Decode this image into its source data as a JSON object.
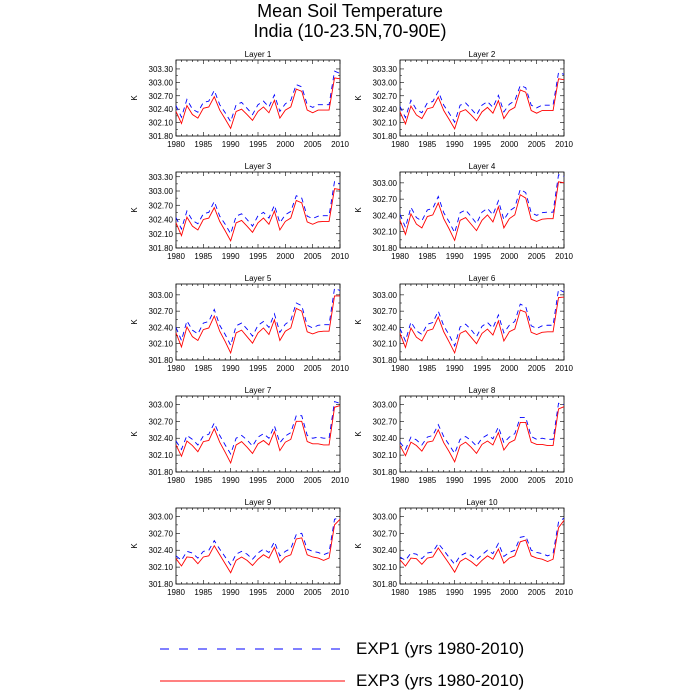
{
  "title": {
    "line1": "Mean Soil Temperature",
    "line2": "India (10-23.5N,70-90E)"
  },
  "colors": {
    "exp1": "#0000ff",
    "exp3": "#ff0000",
    "axis": "#000000"
  },
  "chart_data": {
    "type": "line",
    "x": [
      1980,
      1981,
      1982,
      1983,
      1984,
      1985,
      1986,
      1987,
      1988,
      1989,
      1990,
      1991,
      1992,
      1993,
      1994,
      1995,
      1996,
      1997,
      1998,
      1999,
      2000,
      2001,
      2002,
      2003,
      2004,
      2005,
      2006,
      2007,
      2008,
      2009,
      2010
    ],
    "xlim": [
      1980,
      2010
    ],
    "xticks": [
      1980,
      1985,
      1990,
      1995,
      2000,
      2005,
      2010
    ],
    "ylabel": "K",
    "legend": {
      "position": "bottom",
      "entries": [
        {
          "name": "EXP1 (yrs 1980-2010)",
          "style": "dashed",
          "color": "#0000ff"
        },
        {
          "name": "EXP3 (yrs 1980-2010)",
          "style": "solid",
          "color": "#ff0000"
        }
      ]
    },
    "panels": [
      {
        "title": "Layer 1",
        "ylim": [
          301.8,
          303.5
        ],
        "yticks": [
          "301.80",
          "302.10",
          "302.40",
          "302.70",
          "303.00",
          "303.30"
        ],
        "series": [
          {
            "name": "EXP1 (yrs 1980-2010)",
            "values": [
              302.48,
              302.22,
              302.62,
              302.4,
              302.33,
              302.55,
              302.58,
              302.82,
              302.5,
              302.32,
              302.12,
              302.5,
              302.55,
              302.42,
              302.28,
              302.5,
              302.58,
              302.45,
              302.72,
              302.35,
              302.52,
              302.6,
              302.95,
              302.9,
              302.5,
              302.44,
              302.5,
              302.5,
              302.5,
              303.25,
              303.2
            ]
          },
          {
            "name": "EXP3 (yrs 1980-2010)",
            "values": [
              302.35,
              302.08,
              302.48,
              302.28,
              302.2,
              302.42,
              302.45,
              302.68,
              302.38,
              302.18,
              301.97,
              302.35,
              302.4,
              302.28,
              302.15,
              302.35,
              302.45,
              302.32,
              302.6,
              302.2,
              302.38,
              302.45,
              302.85,
              302.8,
              302.38,
              302.32,
              302.38,
              302.38,
              302.38,
              303.1,
              303.08
            ]
          }
        ]
      },
      {
        "title": "Layer 2",
        "ylim": [
          301.8,
          303.5
        ],
        "yticks": [
          "301.80",
          "302.10",
          "302.40",
          "302.70",
          "303.00",
          "303.30"
        ],
        "series": [
          {
            "name": "EXP1 (yrs 1980-2010)",
            "values": [
              302.46,
              302.21,
              302.6,
              302.39,
              302.32,
              302.54,
              302.57,
              302.8,
              302.49,
              302.31,
              302.11,
              302.49,
              302.54,
              302.41,
              302.27,
              302.49,
              302.57,
              302.44,
              302.71,
              302.34,
              302.51,
              302.59,
              302.93,
              302.88,
              302.49,
              302.43,
              302.49,
              302.49,
              302.49,
              303.22,
              303.18
            ]
          },
          {
            "name": "EXP3 (yrs 1980-2010)",
            "values": [
              302.34,
              302.07,
              302.47,
              302.27,
              302.19,
              302.41,
              302.44,
              302.67,
              302.37,
              302.17,
              301.96,
              302.34,
              302.39,
              302.27,
              302.14,
              302.34,
              302.44,
              302.31,
              302.59,
              302.19,
              302.37,
              302.44,
              302.83,
              302.78,
              302.37,
              302.31,
              302.37,
              302.37,
              302.37,
              303.08,
              303.06
            ]
          }
        ]
      },
      {
        "title": "Layer 3",
        "ylim": [
          301.8,
          303.4
        ],
        "yticks": [
          "301.80",
          "302.10",
          "302.40",
          "302.70",
          "303.00",
          "303.30"
        ],
        "series": [
          {
            "name": "EXP1 (yrs 1980-2010)",
            "values": [
              302.44,
              302.2,
              302.58,
              302.38,
              302.31,
              302.52,
              302.55,
              302.78,
              302.47,
              302.3,
              302.1,
              302.47,
              302.52,
              302.4,
              302.26,
              302.48,
              302.55,
              302.43,
              302.7,
              302.33,
              302.5,
              302.57,
              302.9,
              302.85,
              302.47,
              302.42,
              302.47,
              302.48,
              302.48,
              303.2,
              303.15
            ]
          },
          {
            "name": "EXP3 (yrs 1980-2010)",
            "values": [
              302.33,
              302.06,
              302.45,
              302.26,
              302.18,
              302.4,
              302.43,
              302.65,
              302.36,
              302.16,
              301.95,
              302.33,
              302.38,
              302.26,
              302.13,
              302.33,
              302.43,
              302.3,
              302.58,
              302.18,
              302.36,
              302.43,
              302.8,
              302.75,
              302.35,
              302.3,
              302.35,
              302.36,
              302.36,
              303.05,
              303.03
            ]
          }
        ]
      },
      {
        "title": "Layer 4",
        "ylim": [
          301.8,
          303.2
        ],
        "yticks": [
          "301.80",
          "302.10",
          "302.40",
          "302.70",
          "303.00"
        ],
        "series": [
          {
            "name": "EXP1 (yrs 1980-2010)",
            "values": [
              302.42,
              302.18,
              302.55,
              302.36,
              302.3,
              302.5,
              302.53,
              302.75,
              302.45,
              302.28,
              302.08,
              302.45,
              302.5,
              302.38,
              302.25,
              302.46,
              302.53,
              302.41,
              302.67,
              302.32,
              302.48,
              302.55,
              302.88,
              302.82,
              302.45,
              302.4,
              302.45,
              302.46,
              302.46,
              303.15,
              303.12
            ]
          },
          {
            "name": "EXP3 (yrs 1980-2010)",
            "values": [
              302.31,
              302.05,
              302.43,
              302.24,
              302.17,
              302.38,
              302.41,
              302.63,
              302.34,
              302.15,
              301.94,
              302.31,
              302.36,
              302.24,
              302.12,
              302.31,
              302.41,
              302.28,
              302.56,
              302.17,
              302.34,
              302.41,
              302.78,
              302.72,
              302.33,
              302.29,
              302.33,
              302.34,
              302.34,
              303.02,
              303.0
            ]
          }
        ]
      },
      {
        "title": "Layer 5",
        "ylim": [
          301.8,
          303.2
        ],
        "yticks": [
          "301.80",
          "302.10",
          "302.40",
          "302.70",
          "303.00"
        ],
        "series": [
          {
            "name": "EXP1 (yrs 1980-2010)",
            "values": [
              302.4,
              302.16,
              302.52,
              302.35,
              302.28,
              302.48,
              302.51,
              302.73,
              302.44,
              302.27,
              302.07,
              302.43,
              302.48,
              302.37,
              302.24,
              302.44,
              302.51,
              302.4,
              302.65,
              302.31,
              302.46,
              302.53,
              302.85,
              302.8,
              302.44,
              302.39,
              302.44,
              302.45,
              302.45,
              303.12,
              303.08
            ]
          },
          {
            "name": "EXP3 (yrs 1980-2010)",
            "values": [
              302.3,
              302.04,
              302.41,
              302.23,
              302.16,
              302.36,
              302.39,
              302.61,
              302.33,
              302.14,
              301.93,
              302.3,
              302.35,
              302.23,
              302.11,
              302.3,
              302.39,
              302.27,
              302.54,
              302.16,
              302.33,
              302.39,
              302.75,
              302.7,
              302.32,
              302.28,
              302.32,
              302.33,
              302.33,
              302.98,
              302.98
            ]
          }
        ]
      },
      {
        "title": "Layer 6",
        "ylim": [
          301.8,
          303.2
        ],
        "yticks": [
          "301.80",
          "302.10",
          "302.40",
          "302.70",
          "303.00"
        ],
        "series": [
          {
            "name": "EXP1 (yrs 1980-2010)",
            "values": [
              302.38,
              302.15,
              302.5,
              302.34,
              302.27,
              302.46,
              302.49,
              302.7,
              302.43,
              302.26,
              302.06,
              302.41,
              302.46,
              302.36,
              302.23,
              302.42,
              302.49,
              302.39,
              302.63,
              302.3,
              302.44,
              302.51,
              302.83,
              302.78,
              302.43,
              302.38,
              302.43,
              302.44,
              302.44,
              303.1,
              303.05
            ]
          },
          {
            "name": "EXP3 (yrs 1980-2010)",
            "values": [
              302.29,
              302.03,
              302.39,
              302.22,
              302.15,
              302.34,
              302.37,
              302.59,
              302.32,
              302.13,
              301.93,
              302.29,
              302.34,
              302.22,
              302.1,
              302.29,
              302.37,
              302.26,
              302.52,
              302.15,
              302.32,
              302.37,
              302.72,
              302.68,
              302.31,
              302.27,
              302.31,
              302.32,
              302.32,
              302.95,
              302.96
            ]
          }
        ]
      },
      {
        "title": "Layer 7",
        "ylim": [
          301.8,
          303.15
        ],
        "yticks": [
          "301.80",
          "302.10",
          "302.40",
          "302.70",
          "303.00"
        ],
        "series": [
          {
            "name": "EXP1 (yrs 1980-2010)",
            "values": [
              302.35,
              302.2,
              302.45,
              302.38,
              302.28,
              302.44,
              302.47,
              302.67,
              302.45,
              302.28,
              302.12,
              302.4,
              302.45,
              302.37,
              302.26,
              302.42,
              302.48,
              302.4,
              302.62,
              302.32,
              302.44,
              302.5,
              302.8,
              302.8,
              302.45,
              302.4,
              302.42,
              302.4,
              302.4,
              303.05,
              303.02
            ]
          },
          {
            "name": "EXP3 (yrs 1980-2010)",
            "values": [
              302.28,
              302.08,
              302.35,
              302.27,
              302.16,
              302.34,
              302.36,
              302.57,
              302.33,
              302.15,
              301.96,
              302.28,
              302.34,
              302.24,
              302.13,
              302.3,
              302.36,
              302.28,
              302.52,
              302.18,
              302.33,
              302.38,
              302.7,
              302.7,
              302.34,
              302.3,
              302.3,
              302.28,
              302.28,
              302.95,
              302.98
            ]
          }
        ]
      },
      {
        "title": "Layer 8",
        "ylim": [
          301.8,
          303.15
        ],
        "yticks": [
          "301.80",
          "302.10",
          "302.40",
          "302.70",
          "303.00"
        ],
        "series": [
          {
            "name": "EXP1 (yrs 1980-2010)",
            "values": [
              302.33,
              302.2,
              302.42,
              302.37,
              302.28,
              302.42,
              302.45,
              302.64,
              302.43,
              302.28,
              302.13,
              302.38,
              302.43,
              302.36,
              302.26,
              302.4,
              302.46,
              302.39,
              302.6,
              302.32,
              302.42,
              302.48,
              302.77,
              302.77,
              302.43,
              302.38,
              302.4,
              302.38,
              302.38,
              303.02,
              303.0
            ]
          },
          {
            "name": "EXP3 (yrs 1980-2010)",
            "values": [
              302.27,
              302.09,
              302.33,
              302.27,
              302.17,
              302.33,
              302.35,
              302.55,
              302.32,
              302.16,
              301.98,
              302.27,
              302.33,
              302.24,
              302.13,
              302.29,
              302.35,
              302.28,
              302.5,
              302.19,
              302.32,
              302.37,
              302.68,
              302.68,
              302.33,
              302.29,
              302.29,
              302.27,
              302.27,
              302.92,
              302.96
            ]
          }
        ]
      },
      {
        "title": "Layer 9",
        "ylim": [
          301.8,
          303.15
        ],
        "yticks": [
          "301.80",
          "302.10",
          "302.40",
          "302.70",
          "303.00"
        ],
        "series": [
          {
            "name": "EXP1 (yrs 1980-2010)",
            "values": [
              302.3,
              302.22,
              302.38,
              302.35,
              302.26,
              302.38,
              302.4,
              302.57,
              302.42,
              302.28,
              302.14,
              302.33,
              302.38,
              302.33,
              302.24,
              302.35,
              302.42,
              302.36,
              302.55,
              302.3,
              302.38,
              302.43,
              302.68,
              302.7,
              302.42,
              302.38,
              302.36,
              302.32,
              302.36,
              302.95,
              302.98
            ]
          },
          {
            "name": "EXP3 (yrs 1980-2010)",
            "values": [
              302.25,
              302.12,
              302.28,
              302.27,
              302.16,
              302.28,
              302.3,
              302.48,
              302.32,
              302.16,
              302.0,
              302.22,
              302.28,
              302.22,
              302.13,
              302.24,
              302.32,
              302.26,
              302.45,
              302.18,
              302.28,
              302.32,
              302.6,
              302.62,
              302.32,
              302.28,
              302.26,
              302.22,
              302.26,
              302.85,
              302.95
            ]
          }
        ]
      },
      {
        "title": "Layer 10",
        "ylim": [
          301.8,
          303.15
        ],
        "yticks": [
          "301.80",
          "302.10",
          "302.40",
          "302.70",
          "303.00"
        ],
        "series": [
          {
            "name": "EXP1 (yrs 1980-2010)",
            "values": [
              302.28,
              302.22,
              302.35,
              302.33,
              302.25,
              302.35,
              302.37,
              302.52,
              302.4,
              302.27,
              302.15,
              302.3,
              302.35,
              302.31,
              302.23,
              302.32,
              302.4,
              302.34,
              302.52,
              302.29,
              302.36,
              302.4,
              302.63,
              302.65,
              302.4,
              302.36,
              302.34,
              302.3,
              302.34,
              302.9,
              302.97
            ]
          },
          {
            "name": "EXP3 (yrs 1980-2010)",
            "values": [
              302.23,
              302.12,
              302.26,
              302.25,
              302.15,
              302.26,
              302.28,
              302.44,
              302.3,
              302.16,
              302.01,
              302.2,
              302.26,
              302.2,
              302.12,
              302.22,
              302.3,
              302.24,
              302.42,
              302.17,
              302.26,
              302.3,
              302.55,
              302.58,
              302.3,
              302.26,
              302.24,
              302.2,
              302.24,
              302.8,
              302.93
            ]
          }
        ]
      }
    ]
  }
}
